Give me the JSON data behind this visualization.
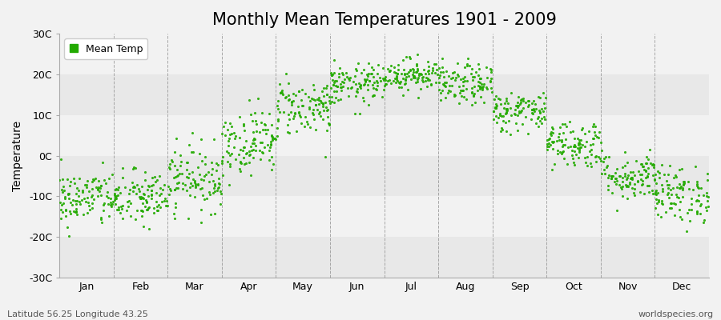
{
  "title": "Monthly Mean Temperatures 1901 - 2009",
  "ylabel": "Temperature",
  "subtitle_left": "Latitude 56.25 Longitude 43.25",
  "subtitle_right": "worldspecies.org",
  "legend_label": "Mean Temp",
  "ylim": [
    -30,
    30
  ],
  "yticks": [
    -30,
    -20,
    -10,
    0,
    10,
    20,
    30
  ],
  "ytick_labels": [
    "-30C",
    "-20C",
    "-10C",
    "0C",
    "10C",
    "20C",
    "30C"
  ],
  "months": [
    "Jan",
    "Feb",
    "Mar",
    "Apr",
    "May",
    "Jun",
    "Jul",
    "Aug",
    "Sep",
    "Oct",
    "Nov",
    "Dec"
  ],
  "month_means": [
    -10.5,
    -10.5,
    -5.5,
    3.5,
    12.0,
    17.5,
    20.0,
    17.5,
    11.0,
    3.0,
    -5.0,
    -9.5
  ],
  "month_stds": [
    3.5,
    3.5,
    4.0,
    4.0,
    3.5,
    2.5,
    2.0,
    2.5,
    2.5,
    3.0,
    3.0,
    3.5
  ],
  "dot_color": "#22aa00",
  "dot_size": 5,
  "dot_marker": "o",
  "background_color": "#f2f2f2",
  "plot_bg_color": "#f2f2f2",
  "band_colors": [
    "#e8e8e8",
    "#f2f2f2"
  ],
  "vline_color": "#888888",
  "n_years": 109,
  "seed": 42,
  "title_fontsize": 15,
  "axis_fontsize": 10,
  "tick_fontsize": 9,
  "legend_fontsize": 9,
  "subtitle_fontsize": 8
}
